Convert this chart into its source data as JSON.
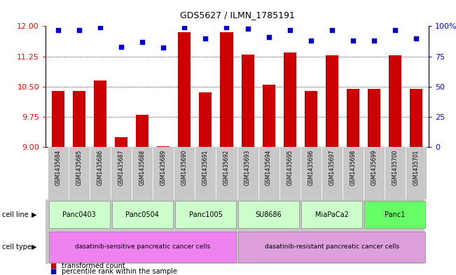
{
  "title": "GDS5627 / ILMN_1785191",
  "samples": [
    "GSM1435684",
    "GSM1435685",
    "GSM1435686",
    "GSM1435687",
    "GSM1435688",
    "GSM1435689",
    "GSM1435690",
    "GSM1435691",
    "GSM1435692",
    "GSM1435693",
    "GSM1435694",
    "GSM1435695",
    "GSM1435696",
    "GSM1435697",
    "GSM1435698",
    "GSM1435699",
    "GSM1435700",
    "GSM1435701"
  ],
  "bar_values": [
    10.4,
    10.4,
    10.65,
    9.25,
    9.8,
    9.02,
    11.85,
    10.35,
    11.85,
    11.3,
    10.55,
    11.35,
    10.4,
    11.28,
    10.45,
    10.45,
    11.28,
    10.45
  ],
  "dot_values": [
    97,
    97,
    99,
    83,
    87,
    82,
    99,
    90,
    99,
    98,
    91,
    97,
    88,
    97,
    88,
    88,
    97,
    90
  ],
  "ylim_left": [
    9,
    12
  ],
  "ylim_right": [
    0,
    100
  ],
  "yticks_left": [
    9,
    9.75,
    10.5,
    11.25,
    12
  ],
  "yticks_right": [
    0,
    25,
    50,
    75,
    100
  ],
  "cell_lines": [
    {
      "label": "Panc0403",
      "start": 0,
      "end": 2,
      "color": "#ccffcc"
    },
    {
      "label": "Panc0504",
      "start": 3,
      "end": 5,
      "color": "#ccffcc"
    },
    {
      "label": "Panc1005",
      "start": 6,
      "end": 8,
      "color": "#ccffcc"
    },
    {
      "label": "SU8686",
      "start": 9,
      "end": 11,
      "color": "#ccffcc"
    },
    {
      "label": "MiaPaCa2",
      "start": 12,
      "end": 14,
      "color": "#ccffcc"
    },
    {
      "label": "Panc1",
      "start": 15,
      "end": 17,
      "color": "#66ff66"
    }
  ],
  "cell_types": [
    {
      "label": "dasatinib-sensitive pancreatic cancer cells",
      "start": 0,
      "end": 8,
      "color": "#ee82ee"
    },
    {
      "label": "dasatinib-resistant pancreatic cancer cells",
      "start": 9,
      "end": 17,
      "color": "#dda0dd"
    }
  ],
  "bar_color": "#cc0000",
  "dot_color": "#0000cc",
  "tick_bg": "#c8c8c8",
  "label_area_bg": "#c8c8c8"
}
